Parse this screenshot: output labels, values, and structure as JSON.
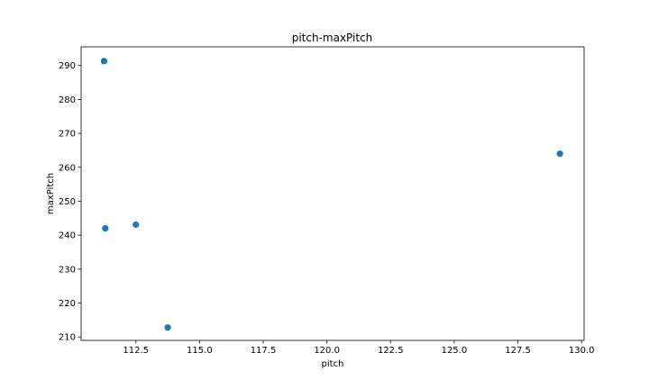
{
  "chart_data": {
    "type": "scatter",
    "title": "pitch-maxPitch",
    "xlabel": "pitch",
    "ylabel": "maxPitch",
    "xlim": [
      110.35,
      130.1
    ],
    "ylim": [
      209.0,
      295.5
    ],
    "xticks": [
      112.5,
      115.0,
      117.5,
      120.0,
      122.5,
      125.0,
      127.5,
      130.0
    ],
    "yticks": [
      210,
      220,
      230,
      240,
      250,
      260,
      270,
      280,
      290
    ],
    "grid": false,
    "color": "#1f77b4",
    "points": [
      {
        "x": 111.25,
        "y": 291.3
      },
      {
        "x": 111.3,
        "y": 242.0
      },
      {
        "x": 112.5,
        "y": 243.1
      },
      {
        "x": 113.75,
        "y": 212.8
      },
      {
        "x": 129.15,
        "y": 264.0
      }
    ]
  }
}
